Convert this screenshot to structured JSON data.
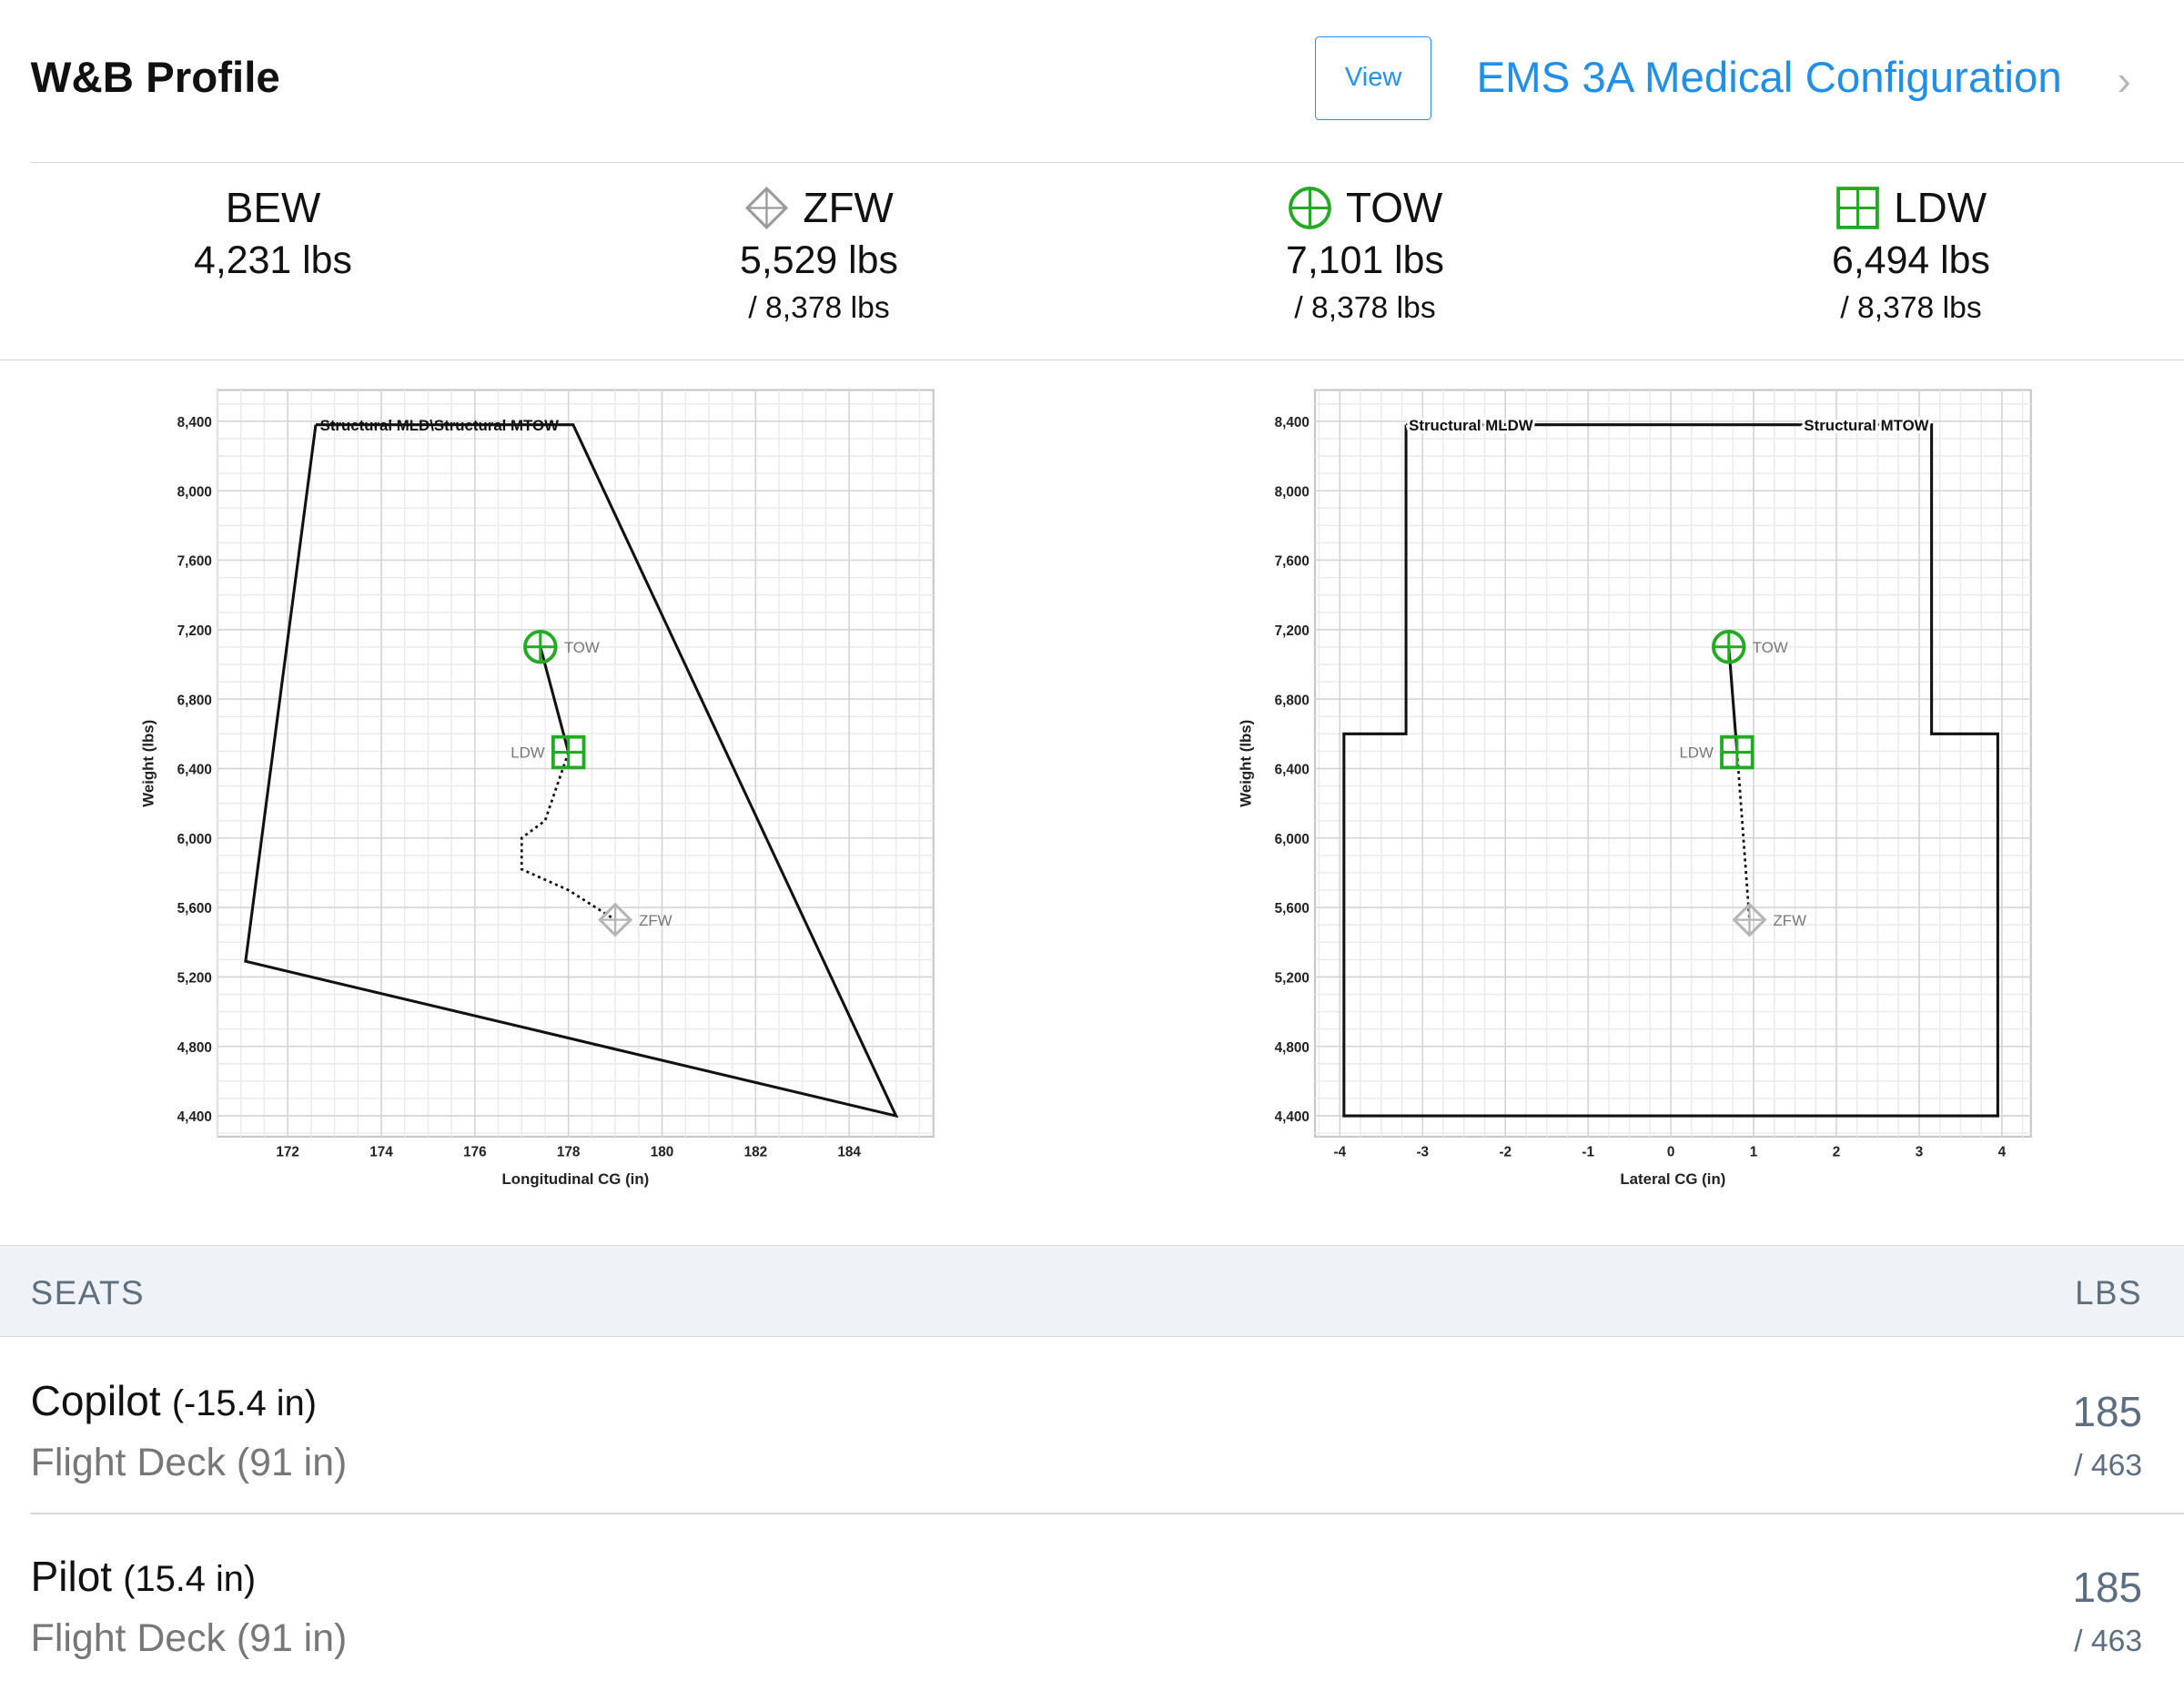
{
  "header": {
    "title": "W&B Profile",
    "view_label": "View",
    "config_label": "EMS 3A Medical Configuration"
  },
  "stats": [
    {
      "label": "BEW",
      "value": "4,231 lbs",
      "limit": "",
      "icon": "none"
    },
    {
      "label": "ZFW",
      "value": "5,529 lbs",
      "limit": "/ 8,378 lbs",
      "icon": "diamond-crosshair-icon"
    },
    {
      "label": "TOW",
      "value": "7,101 lbs",
      "limit": "/ 8,378 lbs",
      "icon": "circle-crosshair-icon"
    },
    {
      "label": "LDW",
      "value": "6,494 lbs",
      "limit": "/ 8,378 lbs",
      "icon": "square-grid-icon"
    }
  ],
  "colors": {
    "accent": "#1f8fe8",
    "marker_green": "#22aa22",
    "marker_gray": "#b5b5b5",
    "section_bg": "#eff3f7"
  },
  "chart_data": [
    {
      "type": "scatter",
      "xlabel": "Longitudinal CG (in)",
      "ylabel": "Weight (lbs)",
      "xlim": [
        170.5,
        185.8
      ],
      "ylim": [
        4280,
        8580
      ],
      "xticks": [
        172,
        174,
        176,
        178,
        180,
        182,
        184
      ],
      "yticks": [
        4400,
        4800,
        5200,
        5600,
        6000,
        6400,
        6800,
        7200,
        7600,
        8000,
        8400
      ],
      "envelope_label": "Structural MLD\\Structural MTOW",
      "envelope": [
        [
          172.6,
          8380
        ],
        [
          178.1,
          8380
        ],
        [
          185.0,
          4400
        ],
        [
          171.1,
          5290
        ],
        [
          172.6,
          8380
        ]
      ],
      "fuel_path": [
        [
          178.0,
          6494
        ],
        [
          177.5,
          6100
        ],
        [
          177.0,
          6000
        ],
        [
          177.0,
          5820
        ],
        [
          178.0,
          5700
        ],
        [
          179.0,
          5529
        ]
      ],
      "points": [
        {
          "name": "TOW",
          "x": 177.4,
          "y": 7101,
          "marker": "circle"
        },
        {
          "name": "LDW",
          "x": 178.0,
          "y": 6494,
          "marker": "square"
        },
        {
          "name": "ZFW",
          "x": 179.0,
          "y": 5529,
          "marker": "diamond"
        }
      ],
      "grid": true
    },
    {
      "type": "scatter",
      "xlabel": "Lateral CG (in)",
      "ylabel": "Weight (lbs)",
      "xlim": [
        -4.3,
        4.35
      ],
      "ylim": [
        4280,
        8580
      ],
      "xticks": [
        -4,
        -3,
        -2,
        -1,
        0,
        1,
        2,
        3,
        4
      ],
      "yticks": [
        4400,
        4800,
        5200,
        5600,
        6000,
        6400,
        6800,
        7200,
        7600,
        8000,
        8400
      ],
      "envelope_label_left": "Structural MLDW",
      "envelope_label_right": "Structural MTOW",
      "envelope": [
        [
          -3.2,
          8380
        ],
        [
          3.15,
          8380
        ],
        [
          3.15,
          6600
        ],
        [
          3.95,
          6600
        ],
        [
          3.95,
          4400
        ],
        [
          -3.95,
          4400
        ],
        [
          -3.95,
          6600
        ],
        [
          -3.2,
          6600
        ],
        [
          -3.2,
          8380
        ]
      ],
      "fuel_path": [
        [
          0.8,
          6494
        ],
        [
          0.95,
          5529
        ]
      ],
      "points": [
        {
          "name": "TOW",
          "x": 0.7,
          "y": 7101,
          "marker": "circle"
        },
        {
          "name": "LDW",
          "x": 0.8,
          "y": 6494,
          "marker": "square"
        },
        {
          "name": "ZFW",
          "x": 0.95,
          "y": 5529,
          "marker": "diamond"
        }
      ],
      "grid": true
    }
  ],
  "seats_header": {
    "left": "SEATS",
    "right": "LBS"
  },
  "seats": [
    {
      "name": "Copilot",
      "arm": "(-15.4 in)",
      "station": "Flight Deck (91 in)",
      "weight": "185",
      "max": "/ 463"
    },
    {
      "name": "Pilot",
      "arm": "(15.4 in)",
      "station": "Flight Deck (91 in)",
      "weight": "185",
      "max": "/ 463"
    }
  ]
}
